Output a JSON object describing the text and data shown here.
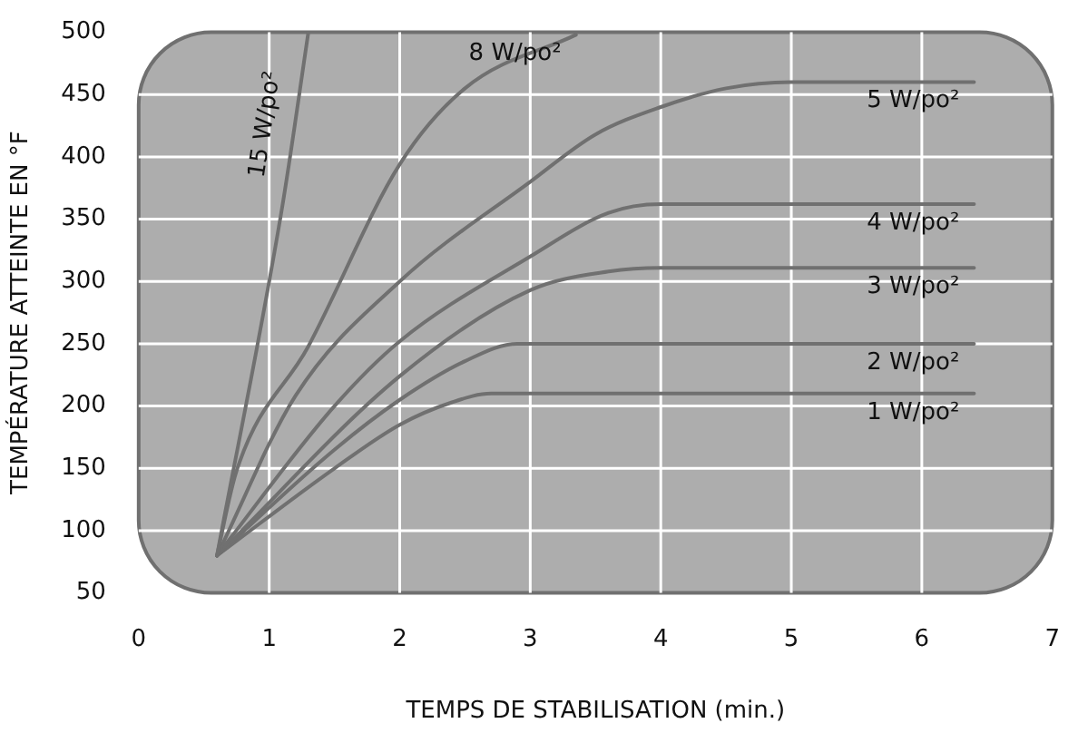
{
  "chart_data": {
    "type": "line",
    "xlabel": "TEMPS DE STABILISATION (min.)",
    "ylabel": "TEMPÉRATURE ATTEINTE EN °F",
    "xlim": [
      0,
      7
    ],
    "xticks": [
      0,
      1,
      2,
      3,
      4,
      5,
      6,
      7
    ],
    "ylim": [
      50,
      500
    ],
    "yticks": [
      50,
      100,
      150,
      200,
      250,
      300,
      350,
      400,
      450,
      500
    ],
    "grid": true,
    "legend": false,
    "marker": "none",
    "line_style": "solid",
    "series": [
      {
        "name": "15 W/po²",
        "color": "#707070",
        "x": [
          0.6,
          1.1,
          1.3
        ],
        "values": [
          80,
          360,
          500
        ]
      },
      {
        "name": "8 W/po²",
        "color": "#707070",
        "x": [
          0.6,
          0.75,
          1.3,
          2,
          2.5,
          3.35
        ],
        "values": [
          80,
          148,
          248,
          394,
          455,
          498
        ]
      },
      {
        "name": "5 W/po²",
        "color": "#707070",
        "x": [
          0.6,
          1.2,
          2,
          3,
          3.5,
          4,
          4.5,
          5,
          6.4
        ],
        "values": [
          80,
          208,
          300,
          380,
          418,
          440,
          455,
          460,
          460
        ]
      },
      {
        "name": "4 W/po²",
        "color": "#707070",
        "x": [
          0.6,
          1.5,
          2,
          3,
          3.6,
          4,
          6.4
        ],
        "values": [
          80,
          200,
          252,
          320,
          355,
          362,
          362
        ]
      },
      {
        "name": "3 W/po²",
        "color": "#707070",
        "x": [
          0.6,
          2,
          3,
          3.6,
          4,
          6.4
        ],
        "values": [
          80,
          224,
          293,
          308,
          311,
          311
        ]
      },
      {
        "name": "2 W/po²",
        "color": "#707070",
        "x": [
          0.6,
          1.5,
          2,
          2.5,
          2.9,
          6.4
        ],
        "values": [
          80,
          165,
          205,
          236,
          250,
          250
        ]
      },
      {
        "name": "1 W/po²",
        "color": "#707070",
        "x": [
          0.6,
          1.5,
          2,
          2.4,
          2.7,
          6.4
        ],
        "values": [
          80,
          150,
          185,
          203,
          210,
          210
        ]
      }
    ]
  }
}
